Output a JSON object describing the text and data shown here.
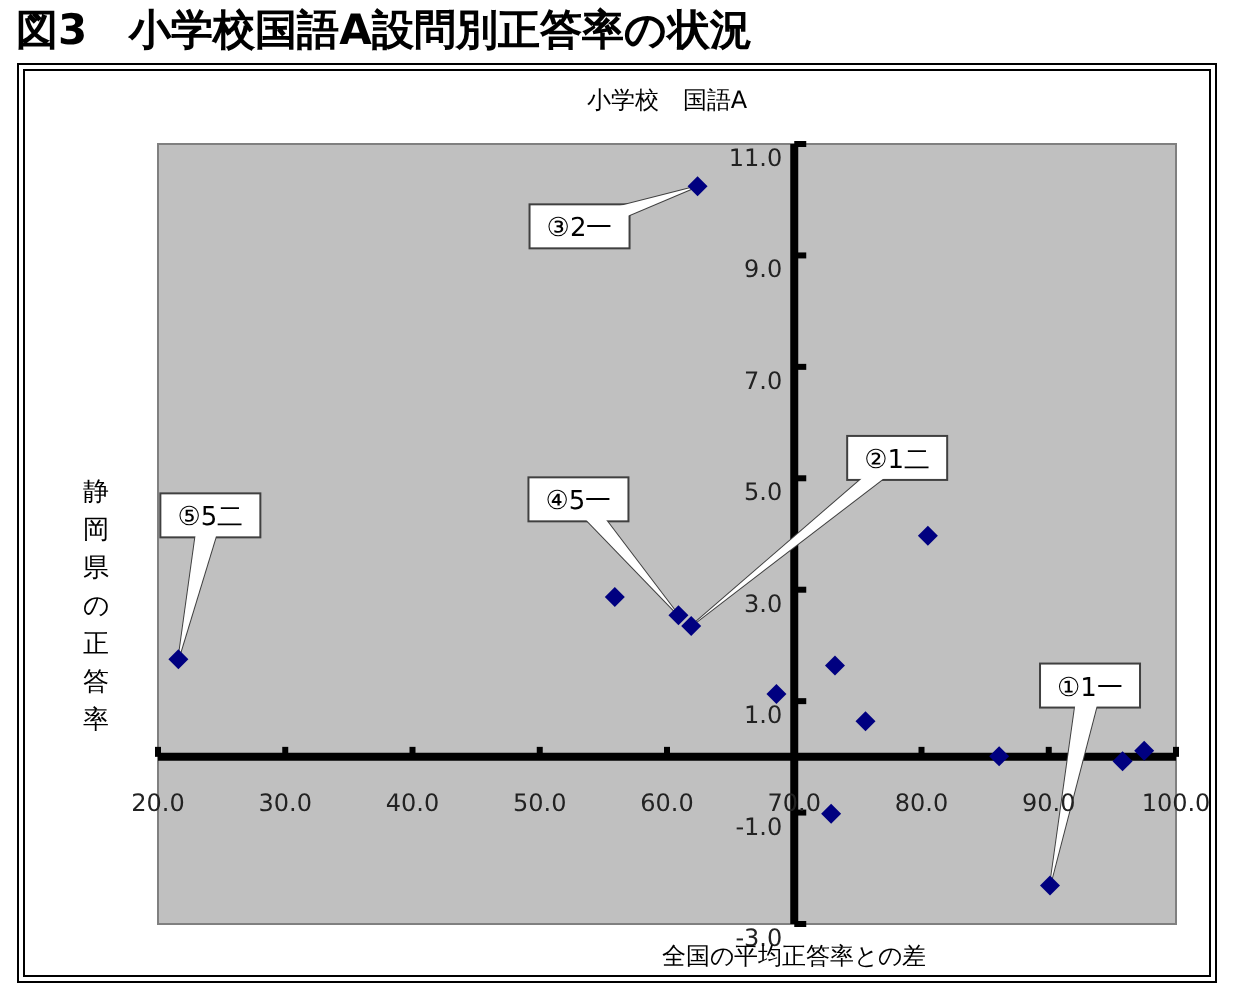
{
  "chart_data": {
    "type": "scatter",
    "title": "図3　小学校国語A設問別正答率の状況",
    "subtitle": "小学校　国語A",
    "xlabel": "全国の平均正答率との差",
    "ylabel": "静岡県の正答率",
    "xlim": [
      20,
      100
    ],
    "ylim": [
      -3,
      11
    ],
    "xticks": [
      {
        "value": 20,
        "label": "20.0"
      },
      {
        "value": 30,
        "label": "30.0"
      },
      {
        "value": 40,
        "label": "40.0"
      },
      {
        "value": 50,
        "label": "50.0"
      },
      {
        "value": 60,
        "label": "60.0"
      },
      {
        "value": 70,
        "label": "70.0"
      },
      {
        "value": 80,
        "label": "80.0"
      },
      {
        "value": 90,
        "label": "90.0"
      },
      {
        "value": 100,
        "label": "100.0"
      }
    ],
    "yticks": [
      {
        "value": -3,
        "label": "-3.0"
      },
      {
        "value": -1,
        "label": "-1.0"
      },
      {
        "value": 1,
        "label": "1.0"
      },
      {
        "value": 3,
        "label": "3.0"
      },
      {
        "value": 5,
        "label": "5.0"
      },
      {
        "value": 7,
        "label": "7.0"
      },
      {
        "value": 9,
        "label": "9.0"
      },
      {
        "value": 11,
        "label": "11.0"
      }
    ],
    "marker": "diamond",
    "series": [
      {
        "color": "#000080",
        "x": [
          21.6,
          55.9,
          60.9,
          61.9,
          62.4,
          68.6,
          73.2,
          75.6,
          80.5,
          72.9,
          86.1,
          90.1,
          95.8,
          97.5
        ],
        "values": [
          1.75,
          2.87,
          2.54,
          2.35,
          10.24,
          1.13,
          1.64,
          0.64,
          3.97,
          -1.02,
          0.01,
          -2.31,
          -0.08,
          0.11
        ]
      }
    ],
    "annotations": [
      {
        "text": "①1一",
        "x": 90.1,
        "y": -2.31
      },
      "②1二",
      {
        "text": "③2一",
        "x": 62.4,
        "y": 10.24
      },
      "④5一",
      {
        "text": "⑤5二",
        "x": 21.6,
        "y": 1.75
      }
    ]
  }
}
